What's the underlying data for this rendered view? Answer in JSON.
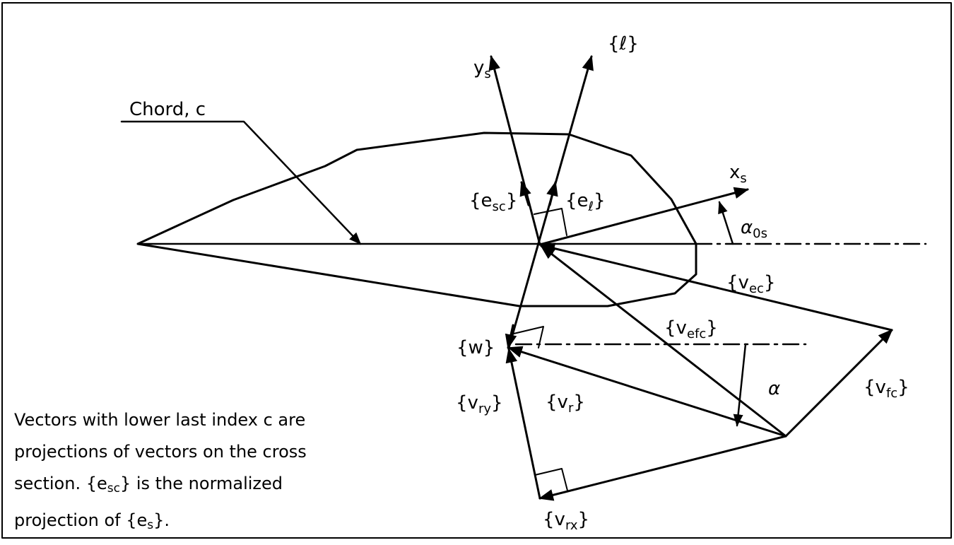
{
  "labels": {
    "ys": {
      "base": "y",
      "sub": "s"
    },
    "l": {
      "base": "{ℓ}"
    },
    "xs": {
      "base": "x",
      "sub": "s"
    },
    "esc": {
      "base": "{e",
      "sub": "sc",
      "end": "}"
    },
    "el": {
      "base": "{e",
      "sub": "ℓ",
      "end": "}"
    },
    "alpha0s": {
      "base": "α",
      "sub": "0s"
    },
    "vec": {
      "base": "{v",
      "sub": "ec",
      "end": "}"
    },
    "vefc": {
      "base": "{v",
      "sub": "efc",
      "end": "}"
    },
    "w": {
      "base": "{w}"
    },
    "vr": {
      "base": "{v",
      "sub": "r",
      "end": "}"
    },
    "alpha": {
      "base": "α"
    },
    "vfc": {
      "base": "{v",
      "sub": "fc",
      "end": "}"
    },
    "vry": {
      "base": "{v",
      "sub": "ry",
      "end": "}"
    },
    "vrx": {
      "base": "{v",
      "sub": "rx",
      "end": "}"
    },
    "chord": "Chord, c"
  },
  "caption": {
    "line1": "Vectors with lower last index c are",
    "line2": "projections of vectors on the cross",
    "line3_a": "section. {e",
    "line3_sub": "sc",
    "line3_b": "} is the normalized",
    "line4_a": "projection of {e",
    "line4_sub": "s",
    "line4_b": "}."
  },
  "colors": {
    "ink": "#000000",
    "background": "#ffffff"
  }
}
